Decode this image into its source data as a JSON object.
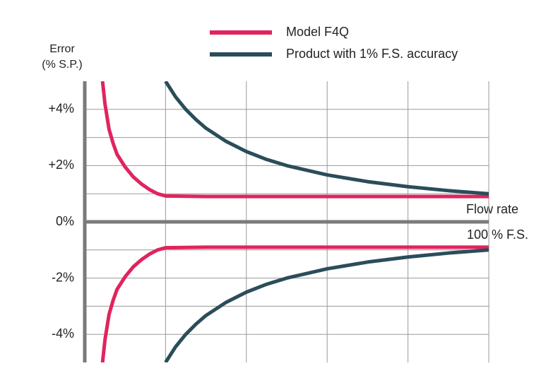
{
  "chart_data": {
    "type": "line",
    "y_label": [
      "Error",
      "(% S.P.)"
    ],
    "annotations": [
      "Flow rate",
      "100 % F.S."
    ],
    "xlim": [
      0,
      100
    ],
    "ylim": [
      -5,
      5
    ],
    "xgrid": [
      20,
      40,
      60,
      80,
      100
    ],
    "ygrid": [
      -4,
      -3,
      -2,
      -1,
      1,
      2,
      3,
      4
    ],
    "yticks": [
      {
        "value": 4,
        "label": "+4%"
      },
      {
        "value": 2,
        "label": "+2%"
      },
      {
        "value": 0,
        "label": "0%"
      },
      {
        "value": -2,
        "label": "-2%"
      },
      {
        "value": -4,
        "label": "-4%"
      }
    ],
    "grid": true,
    "series": [
      {
        "name": "Model F4Q",
        "color": "#e0245e",
        "x": [
          4.4,
          5,
          6,
          7,
          8,
          10,
          12,
          14,
          16,
          18,
          20,
          30,
          40,
          50,
          60,
          70,
          80,
          90,
          100
        ],
        "values": [
          5,
          4.2,
          3.3,
          2.8,
          2.4,
          1.95,
          1.6,
          1.35,
          1.15,
          1.0,
          0.92,
          0.9,
          0.9,
          0.9,
          0.9,
          0.9,
          0.9,
          0.9,
          0.9
        ],
        "lower": [
          -5,
          -4.2,
          -3.3,
          -2.8,
          -2.4,
          -1.95,
          -1.6,
          -1.35,
          -1.15,
          -1.0,
          -0.92,
          -0.9,
          -0.9,
          -0.9,
          -0.9,
          -0.9,
          -0.9,
          -0.9,
          -0.9
        ]
      },
      {
        "name": "Product with 1% F.S. accuracy",
        "color": "#2b4d5a",
        "x": [
          20,
          22.5,
          25,
          27.5,
          30,
          35,
          40,
          45,
          50,
          60,
          70,
          80,
          90,
          100
        ],
        "values": [
          5,
          4.44,
          4,
          3.64,
          3.33,
          2.86,
          2.5,
          2.22,
          2,
          1.67,
          1.43,
          1.25,
          1.11,
          1
        ],
        "lower": [
          -5,
          -4.44,
          -4,
          -3.64,
          -3.33,
          -2.86,
          -2.5,
          -2.22,
          -2,
          -1.67,
          -1.43,
          -1.25,
          -1.11,
          -1
        ]
      }
    ]
  }
}
